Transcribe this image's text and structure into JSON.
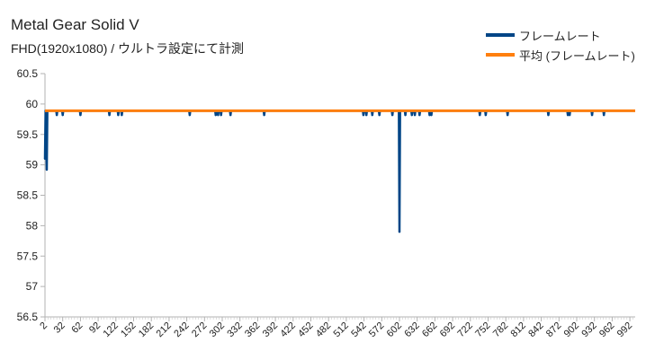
{
  "chart_data": {
    "type": "line",
    "title": "Metal Gear Solid V",
    "subtitle": "FHD(1920x1080) / ウルトラ設定にて計測",
    "xlabel": "",
    "ylabel": "",
    "ylim": [
      56.5,
      60.5
    ],
    "yticks": [
      56.5,
      57,
      57.5,
      58,
      58.5,
      59,
      59.5,
      60,
      60.5
    ],
    "xlim": [
      2,
      1001
    ],
    "xticks": [
      2,
      32,
      62,
      92,
      122,
      152,
      182,
      212,
      242,
      272,
      302,
      332,
      362,
      392,
      422,
      452,
      482,
      512,
      542,
      572,
      602,
      632,
      662,
      692,
      722,
      752,
      782,
      812,
      842,
      872,
      902,
      932,
      962,
      992
    ],
    "grid": false,
    "legend_position": "top-right",
    "series": [
      {
        "name": "フレームレート",
        "color": "#004586",
        "baseline": 59.89,
        "points": [
          [
            2,
            59.1
          ],
          [
            3,
            59.89
          ],
          [
            4,
            59.5
          ],
          [
            5,
            58.92
          ],
          [
            6,
            59.89
          ],
          [
            22,
            59.82
          ],
          [
            32,
            59.82
          ],
          [
            62,
            59.82
          ],
          [
            111,
            59.82
          ],
          [
            126,
            59.82
          ],
          [
            132,
            59.82
          ],
          [
            247,
            59.82
          ],
          [
            291,
            59.82
          ],
          [
            295,
            59.82
          ],
          [
            300,
            59.82
          ],
          [
            316,
            59.82
          ],
          [
            373,
            59.82
          ],
          [
            541,
            59.82
          ],
          [
            546,
            59.82
          ],
          [
            556,
            59.82
          ],
          [
            568,
            59.82
          ],
          [
            590,
            59.82
          ],
          [
            602,
            57.9
          ],
          [
            612,
            59.82
          ],
          [
            623,
            59.82
          ],
          [
            628,
            59.82
          ],
          [
            636,
            59.82
          ],
          [
            653,
            59.82
          ],
          [
            656,
            59.82
          ],
          [
            738,
            59.82
          ],
          [
            748,
            59.82
          ],
          [
            785,
            59.82
          ],
          [
            854,
            59.82
          ],
          [
            887,
            59.82
          ],
          [
            890,
            59.82
          ],
          [
            928,
            59.82
          ],
          [
            948,
            59.82
          ]
        ]
      },
      {
        "name": "平均 (フレームレート)",
        "color": "#FF7F0E",
        "values": [
          59.89,
          59.89
        ],
        "x": [
          2,
          1001
        ]
      }
    ]
  }
}
